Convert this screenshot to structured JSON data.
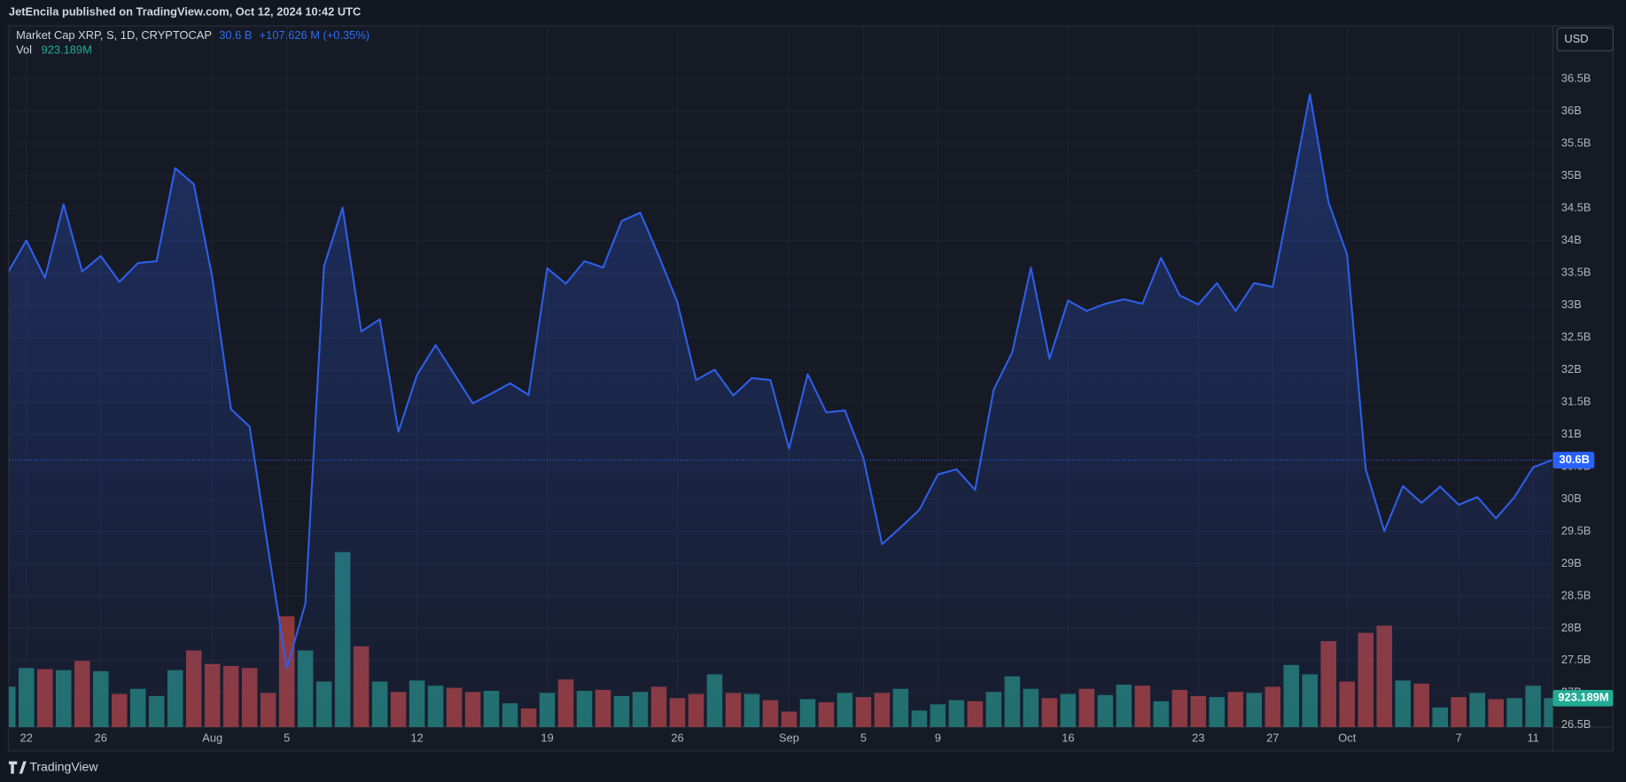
{
  "header": {
    "publisher": "JetEncila published on TradingView.com, Oct 12, 2024 10:42 UTC",
    "brand": "TradingView"
  },
  "chart_data": {
    "type": "line",
    "title": "Market Cap XRP, S, 1D, CRYPTOCAP",
    "last_value": "30.6 B",
    "change": "+107.626 M (+0.35%)",
    "currency": "USD",
    "grid": true,
    "categories": [
      null,
      "22",
      null,
      null,
      null,
      "26",
      null,
      null,
      null,
      null,
      null,
      "Aug",
      null,
      null,
      null,
      "5",
      null,
      null,
      null,
      null,
      null,
      null,
      "12",
      null,
      null,
      null,
      null,
      null,
      null,
      "19",
      null,
      null,
      null,
      null,
      null,
      null,
      "26",
      null,
      null,
      null,
      null,
      null,
      "Sep",
      null,
      null,
      null,
      "5",
      null,
      null,
      null,
      "9",
      null,
      null,
      null,
      null,
      null,
      null,
      "16",
      null,
      null,
      null,
      null,
      null,
      null,
      "23",
      null,
      null,
      null,
      "27",
      null,
      null,
      null,
      "Oct",
      null,
      null,
      null,
      null,
      null,
      "7",
      null,
      null,
      null,
      "11",
      null
    ],
    "ylim": [
      26.47,
      37.32
    ],
    "yticks": [
      {
        "value": 26.5,
        "label": "26.5B"
      },
      {
        "value": 27,
        "label": "27B"
      },
      {
        "value": 27.5,
        "label": "27.5B"
      },
      {
        "value": 28,
        "label": "28B"
      },
      {
        "value": 28.5,
        "label": "28.5B"
      },
      {
        "value": 29,
        "label": "29B"
      },
      {
        "value": 29.5,
        "label": "29.5B"
      },
      {
        "value": 30,
        "label": "30B"
      },
      {
        "value": 30.5,
        "label": "30.5B"
      },
      {
        "value": 31,
        "label": "31B"
      },
      {
        "value": 31.5,
        "label": "31.5B"
      },
      {
        "value": 32,
        "label": "32B"
      },
      {
        "value": 32.5,
        "label": "32.5B"
      },
      {
        "value": 33,
        "label": "33B"
      },
      {
        "value": 33.5,
        "label": "33.5B"
      },
      {
        "value": 34,
        "label": "34B"
      },
      {
        "value": 34.5,
        "label": "34.5B"
      },
      {
        "value": 35,
        "label": "35B"
      },
      {
        "value": 35.5,
        "label": "35.5B"
      },
      {
        "value": 36,
        "label": "36B"
      },
      {
        "value": 36.5,
        "label": "36.5B"
      }
    ],
    "series": [
      {
        "color": "#2f5ee8",
        "last_label": "30.6B",
        "values": [
          33.5,
          34.0,
          33.42,
          34.56,
          33.52,
          33.76,
          33.36,
          33.65,
          33.68,
          35.12,
          34.87,
          33.42,
          31.39,
          31.12,
          29.22,
          27.38,
          28.38,
          33.6,
          34.51,
          32.59,
          32.78,
          31.04,
          31.92,
          32.38,
          31.93,
          31.48,
          31.63,
          31.79,
          31.61,
          33.57,
          33.33,
          33.68,
          33.58,
          34.3,
          34.43,
          33.76,
          33.04,
          31.84,
          32.0,
          31.6,
          31.87,
          31.84,
          30.78,
          31.93,
          31.34,
          31.37,
          30.63,
          29.3,
          29.56,
          29.83,
          30.38,
          30.46,
          30.14,
          31.69,
          32.27,
          33.58,
          32.17,
          33.07,
          32.91,
          33.02,
          33.09,
          33.02,
          33.73,
          33.15,
          33.01,
          33.34,
          32.91,
          33.34,
          33.28,
          34.75,
          36.26,
          34.59,
          33.78,
          30.46,
          29.5,
          30.2,
          29.94,
          30.19,
          29.91,
          30.03,
          29.7,
          30.03,
          30.49,
          30.6
        ]
      }
    ],
    "volume": {
      "type": "bar",
      "name": "Vol",
      "label": "923.189M",
      "label_color": "#22ab94",
      "values": [
        1287,
        1881,
        1848,
        1815,
        2112,
        1782,
        1056,
        1221,
        990,
        1815,
        2442,
        2013,
        1947,
        1881,
        1089,
        3531,
        2442,
        1452,
        5577,
        2574,
        1452,
        1122,
        1485,
        1320,
        1254,
        1122,
        1155,
        759,
        594,
        1089,
        1518,
        1155,
        1188,
        990,
        1122,
        1287,
        924,
        1056,
        1683,
        1089,
        1056,
        858,
        495,
        891,
        792,
        1089,
        957,
        1089,
        1221,
        528,
        726,
        858,
        825,
        1122,
        1617,
        1221,
        924,
        1056,
        1221,
        1023,
        1353,
        1320,
        825,
        1188,
        990,
        957,
        1122,
        1089,
        1287,
        1980,
        1683,
        2739,
        1452,
        3003,
        3234,
        1485,
        1386,
        627,
        957,
        1089,
        891,
        924,
        1320,
        923.189
      ],
      "colors": [
        "#22706b",
        "#22706b",
        "#8f393b",
        "#22706b",
        "#8f393b",
        "#22706b",
        "#8f393b",
        "#22706b",
        "#22706b",
        "#22706b",
        "#8f393b",
        "#8f393b",
        "#8f393b",
        "#8f393b",
        "#8f393b",
        "#8f393b",
        "#22706b",
        "#22706b",
        "#22706b",
        "#8f393b",
        "#22706b",
        "#8f393b",
        "#22706b",
        "#22706b",
        "#8f393b",
        "#8f393b",
        "#22706b",
        "#22706b",
        "#8f393b",
        "#22706b",
        "#8f393b",
        "#22706b",
        "#8f393b",
        "#22706b",
        "#22706b",
        "#8f393b",
        "#8f393b",
        "#8f393b",
        "#22706b",
        "#8f393b",
        "#22706b",
        "#8f393b",
        "#8f393b",
        "#22706b",
        "#8f393b",
        "#22706b",
        "#8f393b",
        "#8f393b",
        "#22706b",
        "#22706b",
        "#22706b",
        "#22706b",
        "#8f393b",
        "#22706b",
        "#22706b",
        "#22706b",
        "#8f393b",
        "#22706b",
        "#8f393b",
        "#22706b",
        "#22706b",
        "#8f393b",
        "#22706b",
        "#8f393b",
        "#8f393b",
        "#22706b",
        "#8f393b",
        "#22706b",
        "#8f393b",
        "#22706b",
        "#22706b",
        "#8f393b",
        "#8f393b",
        "#8f393b",
        "#8f393b",
        "#22706b",
        "#8f393b",
        "#22706b",
        "#8f393b",
        "#22706b",
        "#8f393b",
        "#22706b",
        "#22706b",
        "#22706b"
      ]
    }
  }
}
